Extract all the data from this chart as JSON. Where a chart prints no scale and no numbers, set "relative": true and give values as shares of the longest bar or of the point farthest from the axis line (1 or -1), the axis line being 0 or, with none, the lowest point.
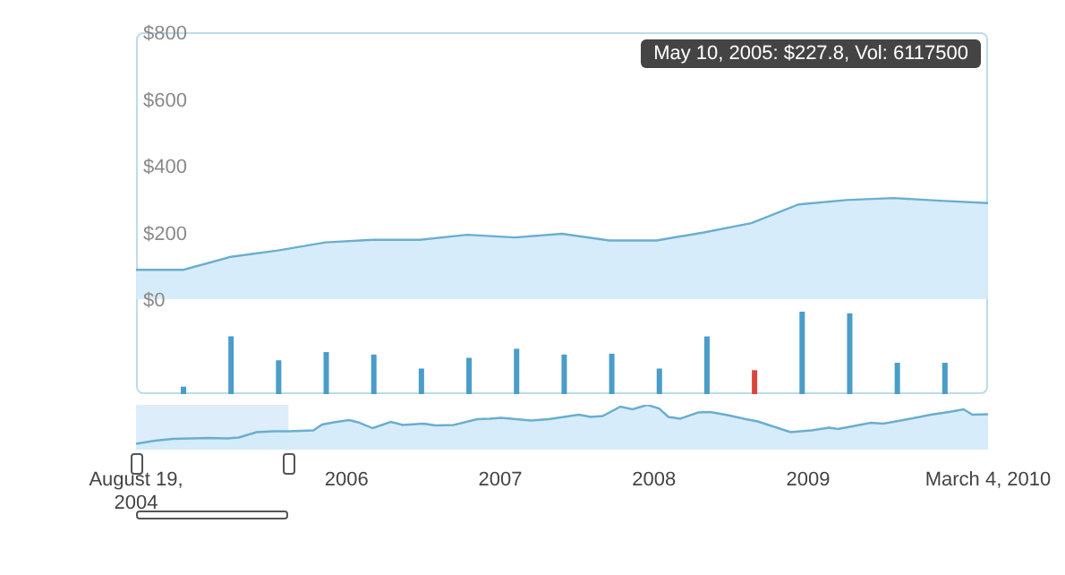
{
  "chart_data": [
    {
      "type": "area",
      "categories": [
        null,
        null,
        null,
        null,
        null,
        null,
        null,
        null,
        null,
        null,
        null,
        null,
        null,
        null,
        null,
        null,
        null,
        null,
        null
      ],
      "series": [
        {
          "color": "#6aaed0",
          "values": [
            88,
            88,
            127,
            146,
            170,
            178,
            178,
            193,
            185,
            196,
            176,
            176,
            200,
            228,
            284,
            297,
            303,
            295,
            288
          ]
        }
      ],
      "ylim": [
        0,
        800
      ],
      "yticks": [
        {
          "value": 0,
          "label": "$0"
        },
        {
          "value": 200,
          "label": "$200"
        },
        {
          "value": 400,
          "label": "$400"
        },
        {
          "value": 600,
          "label": "$600"
        },
        {
          "value": 800,
          "label": "$800"
        }
      ],
      "tick_labels": "y",
      "marker": "none",
      "annotations": [
        "May 10, 2005: $227.8, Vol: 6117500"
      ]
    },
    {
      "type": "bar",
      "categories": [
        null,
        null,
        null,
        null,
        null,
        null,
        null,
        null,
        null,
        null,
        null,
        null,
        null,
        null,
        null,
        null,
        null
      ],
      "values": [
        0.09,
        0.7,
        0.41,
        0.51,
        0.48,
        0.31,
        0.44,
        0.55,
        0.48,
        0.49,
        0.31,
        0.7,
        0.29,
        1,
        0.98,
        0.38,
        0.38
      ],
      "colors": [
        "#4a9cc9",
        "#4a9cc9",
        "#4a9cc9",
        "#4a9cc9",
        "#4a9cc9",
        "#4a9cc9",
        "#4a9cc9",
        "#4a9cc9",
        "#4a9cc9",
        "#4a9cc9",
        "#4a9cc9",
        "#4a9cc9",
        "#d9453b",
        "#4a9cc9",
        "#4a9cc9",
        "#4a9cc9",
        "#4a9cc9"
      ],
      "relative": true
    },
    {
      "type": "area",
      "x": [
        "2004-08-19",
        "2004-10-03",
        "2004-11-15",
        "2004-12-27",
        "2005-02-08",
        "2005-03-22",
        "2005-04-20",
        "2005-06-01",
        "2005-07-14",
        "2005-08-18",
        "2005-10-14",
        "2005-11-04",
        "2005-12-02",
        "2006-01-07",
        "2006-01-28",
        "2006-03-04",
        "2006-04-16",
        "2006-05-14",
        "2006-07-03",
        "2006-07-31",
        "2006-09-12",
        "2006-11-07",
        "2006-12-06",
        "2007-01-03",
        "2007-03-15",
        "2007-04-26",
        "2007-06-08",
        "2007-07-06",
        "2007-08-04",
        "2007-09-01",
        "2007-10-13",
        "2007-11-11",
        "2007-12-16",
        "2008-01-13",
        "2008-02-04",
        "2008-03-03",
        "2008-04-15",
        "2008-05-13",
        "2008-06-24",
        "2008-08-06",
        "2008-09-03",
        "2008-11-20",
        "2009-01-09",
        "2009-02-20",
        "2009-03-13",
        "2009-05-30",
        "2009-06-28",
        "2009-08-09",
        "2009-10-19",
        "2009-12-01",
        "2010-01-05",
        "2010-01-26",
        "2010-03-04"
      ],
      "series": [
        {
          "color": "#6aaed0",
          "values": [
            0.13,
            0.2,
            0.24,
            0.25,
            0.26,
            0.25,
            0.27,
            0.39,
            0.41,
            0.41,
            0.43,
            0.56,
            0.61,
            0.66,
            0.61,
            0.48,
            0.62,
            0.55,
            0.58,
            0.54,
            0.55,
            0.68,
            0.69,
            0.71,
            0.65,
            0.68,
            0.74,
            0.78,
            0.73,
            0.75,
            0.96,
            0.9,
            1,
            0.92,
            0.73,
            0.69,
            0.83,
            0.84,
            0.77,
            0.68,
            0.63,
            0.39,
            0.43,
            0.49,
            0.46,
            0.6,
            0.58,
            0.65,
            0.78,
            0.84,
            0.9,
            0.78,
            0.79
          ]
        }
      ],
      "xlim": [
        "2004-08-19",
        "2010-03-04"
      ],
      "xticks": [
        {
          "value": "2004-08-19",
          "label": "August 19, 2004"
        },
        "2006",
        "2007",
        "2008",
        "2009",
        {
          "value": "2010-03-04",
          "label": "March 4, 2010"
        }
      ],
      "relative": true,
      "marker": "none",
      "bands": [
        {
          "axis": "x",
          "from": "2004-08-19",
          "to": "2005-08-16",
          "color": "#cfe6f8"
        }
      ]
    }
  ]
}
